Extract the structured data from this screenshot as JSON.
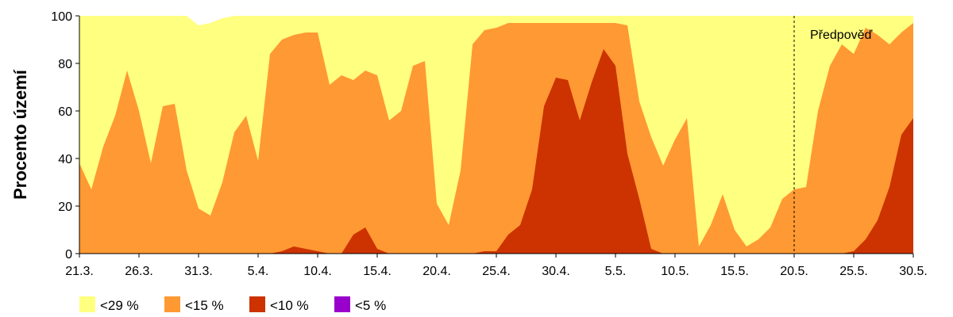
{
  "chart_data": {
    "type": "area",
    "ylabel": "Procento území",
    "ylim": [
      0,
      100
    ],
    "yticks": [
      "0",
      "20",
      "40",
      "60",
      "80",
      "100"
    ],
    "xticks": [
      "21.3.",
      "26.3.",
      "31.3.",
      "5.4.",
      "10.4.",
      "15.4.",
      "20.4.",
      "25.4.",
      "30.4.",
      "5.5.",
      "10.5.",
      "15.5.",
      "20.5.",
      "25.5.",
      "30.5."
    ],
    "x": [
      "21.3.",
      "22.3.",
      "23.3.",
      "24.3.",
      "25.3.",
      "26.3.",
      "27.3.",
      "28.3.",
      "29.3.",
      "30.3.",
      "31.3.",
      "1.4.",
      "2.4.",
      "3.4.",
      "4.4.",
      "5.4.",
      "6.4.",
      "7.4.",
      "8.4.",
      "9.4.",
      "10.4.",
      "11.4.",
      "12.4.",
      "13.4.",
      "14.4.",
      "15.4.",
      "16.4.",
      "17.4.",
      "18.4.",
      "19.4.",
      "20.4.",
      "21.4.",
      "22.4.",
      "23.4.",
      "24.4.",
      "25.4.",
      "26.4.",
      "27.4.",
      "28.4.",
      "29.4.",
      "30.4.",
      "1.5.",
      "2.5.",
      "3.5.",
      "4.5.",
      "5.5.",
      "6.5.",
      "7.5.",
      "8.5.",
      "9.5.",
      "10.5.",
      "11.5.",
      "12.5.",
      "13.5.",
      "14.5.",
      "15.5.",
      "16.5.",
      "17.5.",
      "18.5.",
      "19.5.",
      "20.5.",
      "21.5.",
      "22.5.",
      "23.5.",
      "24.5.",
      "25.5.",
      "26.5.",
      "27.5.",
      "28.5.",
      "29.5.",
      "30.5."
    ],
    "series": [
      {
        "name": "<29 %",
        "color": "#ffff80",
        "values": [
          100,
          100,
          100,
          100,
          100,
          100,
          100,
          100,
          100,
          100,
          96,
          97,
          99,
          100,
          100,
          100,
          100,
          100,
          100,
          100,
          100,
          100,
          100,
          100,
          100,
          100,
          100,
          100,
          100,
          100,
          100,
          100,
          100,
          100,
          100,
          100,
          100,
          100,
          100,
          100,
          100,
          100,
          100,
          100,
          100,
          100,
          100,
          100,
          100,
          100,
          100,
          100,
          100,
          100,
          100,
          100,
          100,
          100,
          100,
          100,
          100,
          100,
          100,
          100,
          100,
          100,
          100,
          100,
          100,
          100,
          100
        ]
      },
      {
        "name": "<15 %",
        "color": "#ff9933",
        "values": [
          38,
          27,
          45,
          58,
          77,
          60,
          38,
          62,
          63,
          35,
          19,
          16,
          30,
          51,
          58,
          39,
          84,
          90,
          92,
          93,
          93,
          71,
          75,
          73,
          77,
          75,
          56,
          60,
          79,
          81,
          21,
          12,
          35,
          88,
          94,
          95,
          97,
          97,
          97,
          97,
          97,
          97,
          97,
          97,
          97,
          97,
          96,
          64,
          49,
          37,
          48,
          57,
          3,
          12,
          25,
          10,
          3,
          6,
          11,
          23,
          27,
          28,
          60,
          79,
          88,
          84,
          95,
          92,
          88,
          93,
          97
        ]
      },
      {
        "name": "<10 %",
        "color": "#cc3300",
        "values": [
          0,
          0,
          0,
          0,
          0,
          0,
          0,
          0,
          0,
          0,
          0,
          0,
          0,
          0,
          0,
          0,
          0,
          1,
          3,
          2,
          1,
          0,
          0,
          8,
          11,
          2,
          0,
          0,
          0,
          0,
          0,
          0,
          0,
          0,
          1,
          1,
          8,
          12,
          27,
          62,
          74,
          73,
          56,
          72,
          86,
          79,
          42,
          23,
          2,
          0,
          0,
          0,
          0,
          0,
          0,
          0,
          0,
          0,
          0,
          0,
          0,
          0,
          0,
          0,
          0,
          1,
          6,
          14,
          28,
          50,
          57
        ]
      },
      {
        "name": "<5 %",
        "color": "#9900cc",
        "values": [
          0,
          0,
          0,
          0,
          0,
          0,
          0,
          0,
          0,
          0,
          0,
          0,
          0,
          0,
          0,
          0,
          0,
          0,
          0,
          0,
          0,
          0,
          0,
          0,
          0,
          0,
          0,
          0,
          0,
          0,
          0,
          0,
          0,
          0,
          0,
          0,
          0,
          0,
          0,
          0,
          0,
          0,
          0,
          0,
          0,
          0,
          0,
          0,
          0,
          0,
          0,
          0,
          0,
          0,
          0,
          0,
          0,
          0,
          0,
          0,
          0,
          0,
          0,
          0,
          0,
          0,
          0,
          0,
          0,
          0,
          0
        ]
      }
    ],
    "annotation": {
      "label": "Předpověď",
      "at_index": 60,
      "line_style": "dashed"
    },
    "legend_position": "bottom-left"
  }
}
